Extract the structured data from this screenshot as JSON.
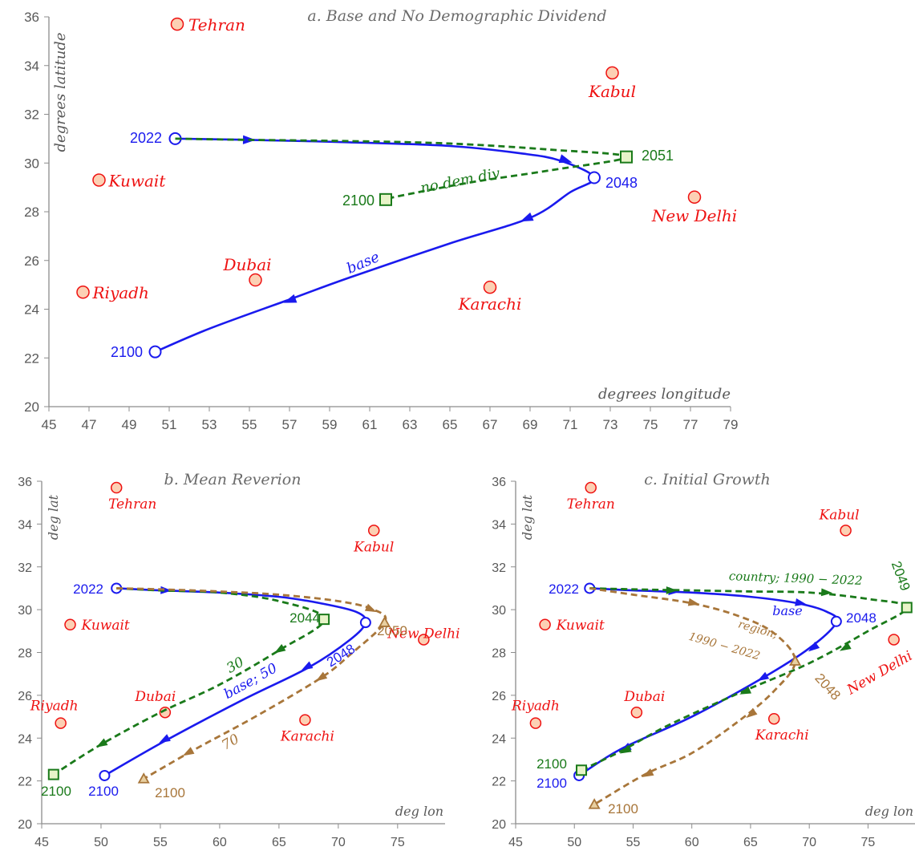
{
  "colors": {
    "base": "#1a1aee",
    "green": "#1a7a1a",
    "brown": "#a8763a",
    "city_fill": "#fcd0b4",
    "city_stroke": "#ee1111",
    "axis": "#8c8c8c",
    "text": "#595959"
  },
  "chart_data": [
    {
      "id": "a",
      "type": "line",
      "title": "a. Base and No Demographic Dividend",
      "xlabel": "degrees longitude",
      "ylabel": "degrees latitude",
      "xlim": [
        45,
        79
      ],
      "ylim": [
        20,
        36
      ],
      "xticks": [
        45,
        47,
        49,
        51,
        53,
        55,
        57,
        59,
        61,
        63,
        65,
        67,
        69,
        71,
        73,
        75,
        77,
        79
      ],
      "yticks": [
        20,
        22,
        24,
        26,
        28,
        30,
        32,
        34,
        36
      ],
      "cities": [
        {
          "name": "Tehran",
          "lon": 51.4,
          "lat": 35.7
        },
        {
          "name": "Kabul",
          "lon": 73.1,
          "lat": 33.7
        },
        {
          "name": "Kuwait",
          "lon": 47.5,
          "lat": 29.3
        },
        {
          "name": "New Delhi",
          "lon": 77.2,
          "lat": 28.6
        },
        {
          "name": "Dubai",
          "lon": 55.3,
          "lat": 25.2
        },
        {
          "name": "Karachi",
          "lon": 67.0,
          "lat": 24.9
        },
        {
          "name": "Riyadh",
          "lon": 46.7,
          "lat": 24.7
        }
      ],
      "series": [
        {
          "name": "base",
          "style": "solid",
          "color_key": "base",
          "marker": "circle",
          "points": [
            [
              51.3,
              31.0
            ],
            [
              55,
              30.95
            ],
            [
              60,
              30.85
            ],
            [
              65,
              30.7
            ],
            [
              68.5,
              30.4
            ],
            [
              70.5,
              30.1
            ],
            [
              72.2,
              29.4
            ],
            [
              71.0,
              28.8
            ],
            [
              69,
              27.75
            ],
            [
              65,
              26.7
            ],
            [
              60,
              25.3
            ],
            [
              57,
              24.4
            ],
            [
              53,
              23.2
            ],
            [
              50.3,
              22.25
            ]
          ],
          "markers": [
            {
              "label": "2022",
              "lon": 51.3,
              "lat": 31.0
            },
            {
              "label": "2048",
              "lon": 72.2,
              "lat": 29.4
            },
            {
              "label": "2100",
              "lon": 50.3,
              "lat": 22.25
            }
          ],
          "arrows": [
            [
              55,
              30.95,
              1
            ],
            [
              70.8,
              30.1,
              1
            ],
            [
              68.8,
              27.7,
              -1
            ],
            [
              57,
              24.35,
              -1
            ]
          ]
        },
        {
          "name": "no dem div",
          "style": "dashed",
          "color_key": "green",
          "marker": "square",
          "points": [
            [
              51.3,
              31.0
            ],
            [
              55,
              30.95
            ],
            [
              60,
              30.9
            ],
            [
              65,
              30.8
            ],
            [
              70,
              30.55
            ],
            [
              73.8,
              30.25
            ],
            [
              70,
              29.7
            ],
            [
              66,
              29.2
            ],
            [
              62.5,
              28.65
            ],
            [
              61.8,
              28.5
            ]
          ],
          "markers": [
            {
              "label": "2051",
              "lon": 73.8,
              "lat": 30.25
            },
            {
              "label": "2100",
              "lon": 61.8,
              "lat": 28.5
            }
          ],
          "arrows": []
        }
      ]
    },
    {
      "id": "b",
      "type": "line",
      "title": "b. Mean Reverion",
      "xlabel": "deg lon",
      "ylabel": "deg lat",
      "xlim": [
        45,
        79
      ],
      "ylim": [
        20,
        36
      ],
      "xticks": [
        45,
        50,
        55,
        60,
        65,
        70,
        75
      ],
      "yticks": [
        20,
        22,
        24,
        26,
        28,
        30,
        32,
        34,
        36
      ],
      "cities": [
        {
          "name": "Tehran",
          "lon": 51.3,
          "lat": 35.7
        },
        {
          "name": "Kabul",
          "lon": 73.0,
          "lat": 33.7
        },
        {
          "name": "Kuwait",
          "lon": 47.4,
          "lat": 29.3
        },
        {
          "name": "New Delhi",
          "lon": 77.2,
          "lat": 28.6
        },
        {
          "name": "Dubai",
          "lon": 55.4,
          "lat": 25.2
        },
        {
          "name": "Karachi",
          "lon": 67.2,
          "lat": 24.85
        },
        {
          "name": "Riyadh",
          "lon": 46.6,
          "lat": 24.7
        }
      ],
      "series": [
        {
          "name": "base; 50",
          "style": "solid",
          "color_key": "base",
          "marker": "circle",
          "points": [
            [
              51.3,
              31.0
            ],
            [
              55,
              30.9
            ],
            [
              60,
              30.8
            ],
            [
              65,
              30.6
            ],
            [
              68.5,
              30.3
            ],
            [
              71.5,
              29.9
            ],
            [
              72.3,
              29.4
            ],
            [
              71,
              28.6
            ],
            [
              67.5,
              27.3
            ],
            [
              62,
              25.8
            ],
            [
              55.5,
              23.9
            ],
            [
              50.3,
              22.25
            ]
          ],
          "markers": [
            {
              "label": "2022",
              "lon": 51.3,
              "lat": 31.0
            },
            {
              "label": "2048",
              "lon": 72.3,
              "lat": 29.4
            },
            {
              "label": "2100",
              "lon": 50.3,
              "lat": 22.25
            }
          ],
          "arrows": [
            [
              55.5,
              30.9,
              1
            ],
            [
              67.3,
              27.3,
              -1
            ],
            [
              55.3,
              23.9,
              -1
            ]
          ]
        },
        {
          "name": "30",
          "style": "dashed",
          "color_key": "green",
          "marker": "square",
          "points": [
            [
              51.3,
              31.0
            ],
            [
              55,
              30.9
            ],
            [
              60,
              30.8
            ],
            [
              65,
              30.4
            ],
            [
              68.8,
              29.55
            ],
            [
              65,
              28.1
            ],
            [
              60,
              26.5
            ],
            [
              55,
              25.2
            ],
            [
              50,
              23.7
            ],
            [
              46,
              22.3
            ]
          ],
          "markers": [
            {
              "label": "2044",
              "lon": 68.8,
              "lat": 29.55
            },
            {
              "label": "2100",
              "lon": 46.0,
              "lat": 22.3
            }
          ],
          "arrows": [
            [
              65,
              28.1,
              -1
            ],
            [
              50,
              23.7,
              -1
            ]
          ]
        },
        {
          "name": "70",
          "style": "dashed",
          "color_key": "brown",
          "marker": "triangle",
          "points": [
            [
              51.3,
              31.0
            ],
            [
              55,
              30.95
            ],
            [
              60,
              30.85
            ],
            [
              65,
              30.7
            ],
            [
              70,
              30.4
            ],
            [
              73,
              30.0
            ],
            [
              73.9,
              29.4
            ],
            [
              71,
              27.9
            ],
            [
              68.5,
              26.8
            ],
            [
              63,
              25.0
            ],
            [
              58,
              23.5
            ],
            [
              53.6,
              22.1
            ]
          ],
          "markers": [
            {
              "label": "2050",
              "lon": 73.9,
              "lat": 29.4
            },
            {
              "label": "2100",
              "lon": 53.6,
              "lat": 22.1
            }
          ],
          "arrows": [
            [
              72.8,
              30.0,
              1
            ],
            [
              68.5,
              26.8,
              -1
            ],
            [
              57.3,
              23.3,
              -1
            ]
          ]
        }
      ]
    },
    {
      "id": "c",
      "type": "line",
      "title": "c. Initial Growth",
      "xlabel": "deg lon",
      "ylabel": "deg lat",
      "xlim": [
        45,
        79
      ],
      "ylim": [
        20,
        36
      ],
      "xticks": [
        45,
        50,
        55,
        60,
        65,
        70,
        75
      ],
      "yticks": [
        20,
        22,
        24,
        26,
        28,
        30,
        32,
        34,
        36
      ],
      "cities": [
        {
          "name": "Tehran",
          "lon": 51.4,
          "lat": 35.7
        },
        {
          "name": "Kabul",
          "lon": 73.1,
          "lat": 33.7
        },
        {
          "name": "Kuwait",
          "lon": 47.5,
          "lat": 29.3
        },
        {
          "name": "New Delhi",
          "lon": 77.2,
          "lat": 28.6
        },
        {
          "name": "Dubai",
          "lon": 55.3,
          "lat": 25.2
        },
        {
          "name": "Karachi",
          "lon": 67.0,
          "lat": 24.9
        },
        {
          "name": "Riyadh",
          "lon": 46.7,
          "lat": 24.7
        }
      ],
      "series": [
        {
          "name": "base",
          "style": "solid",
          "color_key": "base",
          "marker": "circle",
          "points": [
            [
              51.3,
              31.0
            ],
            [
              55,
              30.9
            ],
            [
              60,
              30.8
            ],
            [
              65,
              30.6
            ],
            [
              69,
              30.3
            ],
            [
              71.5,
              29.9
            ],
            [
              72.3,
              29.4
            ],
            [
              70,
              28.2
            ],
            [
              66,
              26.8
            ],
            [
              60,
              25.0
            ],
            [
              54,
              23.5
            ],
            [
              50.4,
              22.25
            ]
          ],
          "markers": [
            {
              "label": "2022",
              "lon": 51.3,
              "lat": 31.0
            },
            {
              "label": "2048",
              "lon": 72.3,
              "lat": 29.45
            },
            {
              "label": "2100",
              "lon": 50.4,
              "lat": 22.25
            }
          ],
          "arrows": [
            [
              58.5,
              30.85,
              1
            ],
            [
              69.3,
              30.3,
              1
            ],
            [
              70.3,
              28.2,
              -1
            ],
            [
              66,
              26.8,
              -1
            ],
            [
              54.3,
              23.5,
              -1
            ]
          ]
        },
        {
          "name": "country; 1990 - 2022",
          "style": "dashed",
          "color_key": "green",
          "marker": "square",
          "points": [
            [
              51.3,
              31.0
            ],
            [
              55,
              30.95
            ],
            [
              60,
              30.9
            ],
            [
              65,
              30.85
            ],
            [
              70,
              30.8
            ],
            [
              75,
              30.5
            ],
            [
              78.3,
              30.1
            ],
            [
              75,
              29.0
            ],
            [
              70,
              27.5
            ],
            [
              64,
              26.1
            ],
            [
              58,
              24.6
            ],
            [
              54,
              23.4
            ],
            [
              50.6,
              22.5
            ]
          ],
          "markers": [
            {
              "label": "2049",
              "lon": 78.3,
              "lat": 30.1
            },
            {
              "label": "2100",
              "lon": 50.6,
              "lat": 22.5
            }
          ],
          "arrows": [
            [
              58.3,
              30.9,
              1
            ],
            [
              71.5,
              30.8,
              1
            ],
            [
              73,
              28.2,
              -1
            ],
            [
              64.5,
              26.15,
              -1
            ],
            [
              54.3,
              23.4,
              -1
            ]
          ]
        },
        {
          "name": "region; 1990 - 2022",
          "style": "dashed",
          "color_key": "brown",
          "marker": "triangle",
          "points": [
            [
              51.3,
              31.0
            ],
            [
              55,
              30.7
            ],
            [
              60,
              30.3
            ],
            [
              64,
              29.7
            ],
            [
              67,
              28.9
            ],
            [
              68.8,
              27.6
            ],
            [
              67,
              26.2
            ],
            [
              64,
              24.8
            ],
            [
              60,
              23.3
            ],
            [
              56,
              22.3
            ],
            [
              51.7,
              20.9
            ]
          ],
          "markers": [
            {
              "label": "2048",
              "lon": 68.8,
              "lat": 27.6
            },
            {
              "label": "2100",
              "lon": 51.7,
              "lat": 20.9
            }
          ],
          "arrows": [
            [
              60.2,
              30.3,
              1
            ],
            [
              65,
              25.1,
              -1
            ],
            [
              56.2,
              22.3,
              -1
            ]
          ]
        }
      ]
    }
  ],
  "labels": {
    "a": {
      "year_2022": "2022",
      "year_2051": "2051",
      "year_2048": "2048",
      "year_2100_green": "2100",
      "year_2100_blue": "2100",
      "no_dem_div": "no dem div",
      "base": "base"
    },
    "b": {
      "year_2022": "2022",
      "year_2044": "2044",
      "year_2048": "2048",
      "year_2050": "2050",
      "year_2100_green": "2100",
      "year_2100_blue": "2100",
      "year_2100_brown": "2100",
      "green_30": "30",
      "base_50": "base; 50",
      "brown_70": "70"
    },
    "c": {
      "year_2022": "2022",
      "year_2049": "2049",
      "year_2048_blue": "2048",
      "year_2048_brown": "2048",
      "year_2100_green": "2100",
      "year_2100_blue": "2100",
      "year_2100_brown": "2100",
      "country": "country; 1990 − 2022",
      "region_1": "region;",
      "region_2": "1990 − 2022",
      "base": "base"
    }
  }
}
